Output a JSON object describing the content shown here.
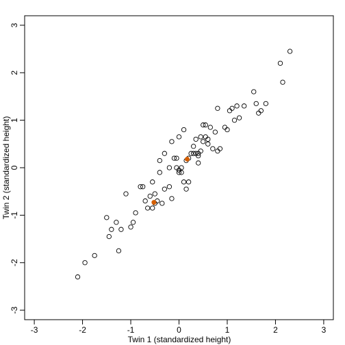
{
  "chart_data": {
    "type": "scatter",
    "title": "",
    "xlabel": "Twin 1 (standardized height)",
    "ylabel": "Twin 2 (standardized height)",
    "xlim": [
      -3.2,
      3.2
    ],
    "ylim": [
      -3.2,
      3.2
    ],
    "xticks": [
      -3,
      -2,
      -1,
      0,
      1,
      2,
      3
    ],
    "yticks": [
      -3,
      -2,
      -1,
      0,
      1,
      2,
      3
    ],
    "grid": false,
    "series": [
      {
        "color": "#000000",
        "marker": "open-circle",
        "x": [
          -2.1,
          -1.95,
          -1.75,
          -1.5,
          -1.45,
          -1.4,
          -1.3,
          -1.25,
          -1.2,
          -1.1,
          -1.0,
          -0.95,
          -0.9,
          -0.8,
          -0.75,
          -0.7,
          -0.65,
          -0.6,
          -0.55,
          -0.55,
          -0.5,
          -0.5,
          -0.45,
          -0.4,
          -0.4,
          -0.35,
          -0.3,
          -0.3,
          -0.2,
          -0.2,
          -0.15,
          -0.15,
          -0.1,
          -0.05,
          -0.05,
          0.0,
          0.0,
          0.0,
          0.05,
          0.05,
          0.1,
          0.1,
          0.15,
          0.15,
          0.2,
          0.2,
          0.25,
          0.3,
          0.3,
          0.35,
          0.35,
          0.4,
          0.4,
          0.4,
          0.45,
          0.45,
          0.5,
          0.5,
          0.55,
          0.55,
          0.6,
          0.6,
          0.65,
          0.7,
          0.75,
          0.8,
          0.8,
          0.85,
          0.95,
          1.0,
          1.05,
          1.1,
          1.15,
          1.2,
          1.25,
          1.35,
          1.55,
          1.6,
          1.65,
          1.7,
          1.8,
          2.1,
          2.15,
          2.3
        ],
        "y": [
          -2.3,
          -2.0,
          -1.85,
          -1.05,
          -1.45,
          -1.3,
          -1.15,
          -1.75,
          -1.3,
          -0.55,
          -1.25,
          -1.15,
          -0.95,
          -0.4,
          -0.4,
          -0.7,
          -0.85,
          -0.6,
          -0.85,
          -0.3,
          -0.75,
          -0.55,
          -0.7,
          -0.1,
          0.15,
          -0.75,
          -0.45,
          0.3,
          0.0,
          -0.4,
          0.55,
          -0.65,
          0.2,
          0.2,
          0.0,
          -0.1,
          -0.05,
          0.65,
          -0.1,
          0.0,
          0.8,
          -0.3,
          0.15,
          -0.45,
          0.2,
          -0.3,
          0.3,
          0.45,
          0.3,
          0.6,
          0.3,
          0.25,
          0.1,
          0.3,
          0.35,
          0.65,
          0.55,
          0.9,
          0.65,
          0.9,
          0.6,
          0.5,
          0.85,
          0.4,
          0.75,
          0.35,
          1.25,
          0.4,
          0.85,
          0.8,
          1.2,
          1.25,
          1.0,
          1.3,
          1.05,
          1.3,
          1.6,
          1.35,
          1.15,
          1.2,
          1.35,
          2.2,
          1.8,
          2.45
        ]
      },
      {
        "color": "#D55E00",
        "marker": "filled-circle",
        "x": [
          -0.52,
          0.17
        ],
        "y": [
          -0.73,
          0.18
        ]
      }
    ]
  }
}
